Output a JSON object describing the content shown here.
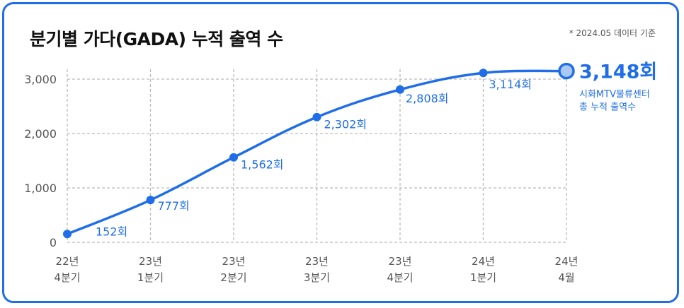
{
  "header": {
    "title": "분기별 가다(GADA) 누적 출역 수",
    "note": "* 2024.05 데이터 기준"
  },
  "colors": {
    "accent": "#1f6ee8",
    "final_marker_fill": "#a9c9f3",
    "grid": "#bbbbbb"
  },
  "chart_data": {
    "type": "line",
    "title": "분기별 가다(GADA) 누적 출역 수",
    "x_labels": [
      [
        "22년",
        "4분기"
      ],
      [
        "23년",
        "1분기"
      ],
      [
        "23년",
        "2분기"
      ],
      [
        "23년",
        "3분기"
      ],
      [
        "23년",
        "4분기"
      ],
      [
        "24년",
        "1분기"
      ],
      [
        "24년",
        "4월"
      ]
    ],
    "values": [
      152,
      777,
      1562,
      2302,
      2808,
      3114,
      3148
    ],
    "data_labels": [
      "152회",
      "777회",
      "1,562회",
      "2,302회",
      "2,808회",
      "3,114회",
      "3,148회"
    ],
    "y_ticks": [
      0,
      1000,
      2000,
      3000
    ],
    "y_tick_labels": [
      "0",
      "1,000",
      "2,000",
      "3,000"
    ],
    "ylim": [
      0,
      3000
    ],
    "grid": true,
    "final_caption": [
      "시화MTV물류센터",
      "총 누적 출역수"
    ]
  }
}
